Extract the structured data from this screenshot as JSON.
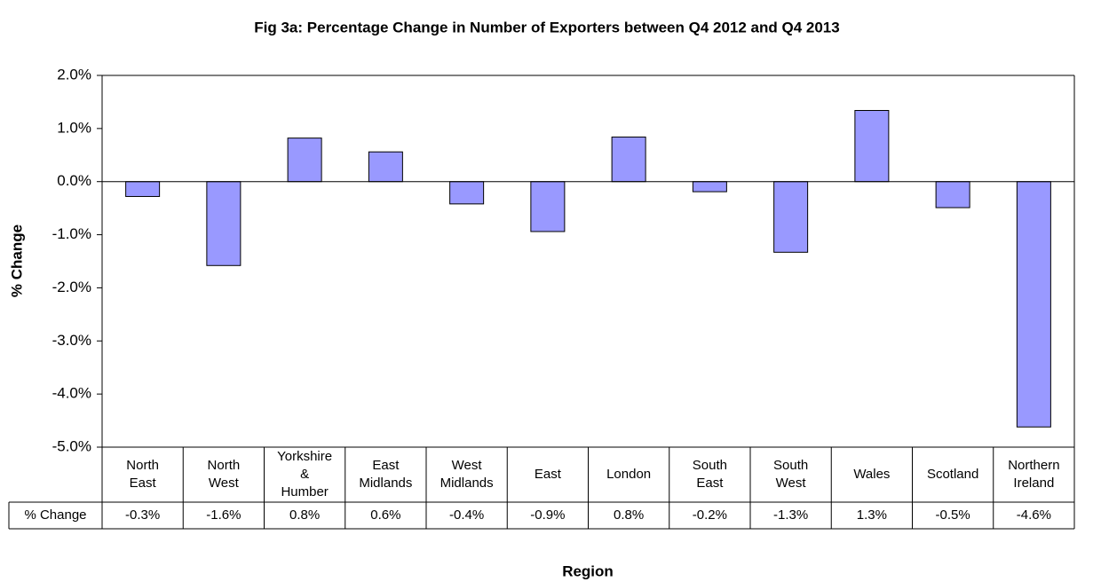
{
  "chart_data": {
    "type": "bar",
    "title": "Fig 3a: Percentage Change in Number of Exporters between Q4 2012 and Q4 2013",
    "y_label": "% Change",
    "x_label": "Region",
    "table_row_label": "% Change",
    "categories": [
      "North\nEast",
      "North\nWest",
      "Yorkshire\n&\nHumber",
      "East\nMidlands",
      "West\nMidlands",
      "East",
      "London",
      "South\nEast",
      "South\nWest",
      "Wales",
      "Scotland",
      "Northern\nIreland"
    ],
    "values": [
      -0.28,
      -1.58,
      0.82,
      0.56,
      -0.42,
      -0.94,
      0.84,
      -0.19,
      -1.33,
      1.34,
      -0.49,
      -4.62
    ],
    "value_labels": [
      "-0.3%",
      "-1.6%",
      "0.8%",
      "0.6%",
      "-0.4%",
      "-0.9%",
      "0.8%",
      "-0.2%",
      "-1.3%",
      "1.3%",
      "-0.5%",
      "-4.6%"
    ],
    "color": "#9999ff",
    "ylim": [
      -5,
      2
    ],
    "yticks": [
      {
        "value": -5,
        "label": "-5.0%"
      },
      {
        "value": -4,
        "label": "-4.0%"
      },
      {
        "value": -3,
        "label": "-3.0%"
      },
      {
        "value": -2,
        "label": "-2.0%"
      },
      {
        "value": -1,
        "label": "-1.0%"
      },
      {
        "value": 0,
        "label": "0.0%"
      },
      {
        "value": 1,
        "label": "1.0%"
      },
      {
        "value": 2,
        "label": "2.0%"
      }
    ]
  }
}
